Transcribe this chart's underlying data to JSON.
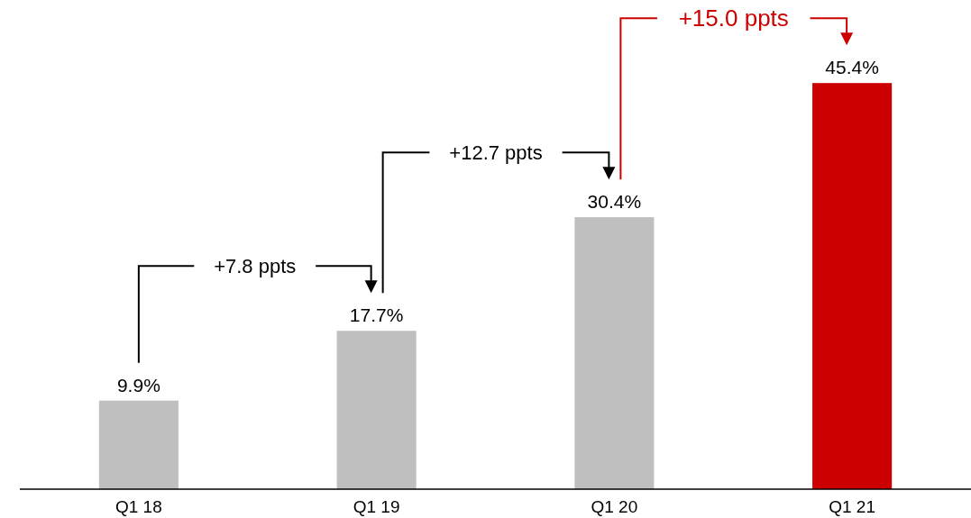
{
  "chart_data": {
    "type": "bar",
    "categories": [
      "Q1 18",
      "Q1 19",
      "Q1 20",
      "Q1 21"
    ],
    "values": [
      9.9,
      17.7,
      30.4,
      45.4
    ],
    "colors": [
      "#bfbfbf",
      "#bfbfbf",
      "#bfbfbf",
      "#cc0000"
    ],
    "value_labels": [
      "9.9%",
      "17.7%",
      "30.4%",
      "45.4%"
    ],
    "annotations": [
      "+7.8 ppts",
      "+12.7 ppts",
      "+15.0 ppts"
    ]
  }
}
